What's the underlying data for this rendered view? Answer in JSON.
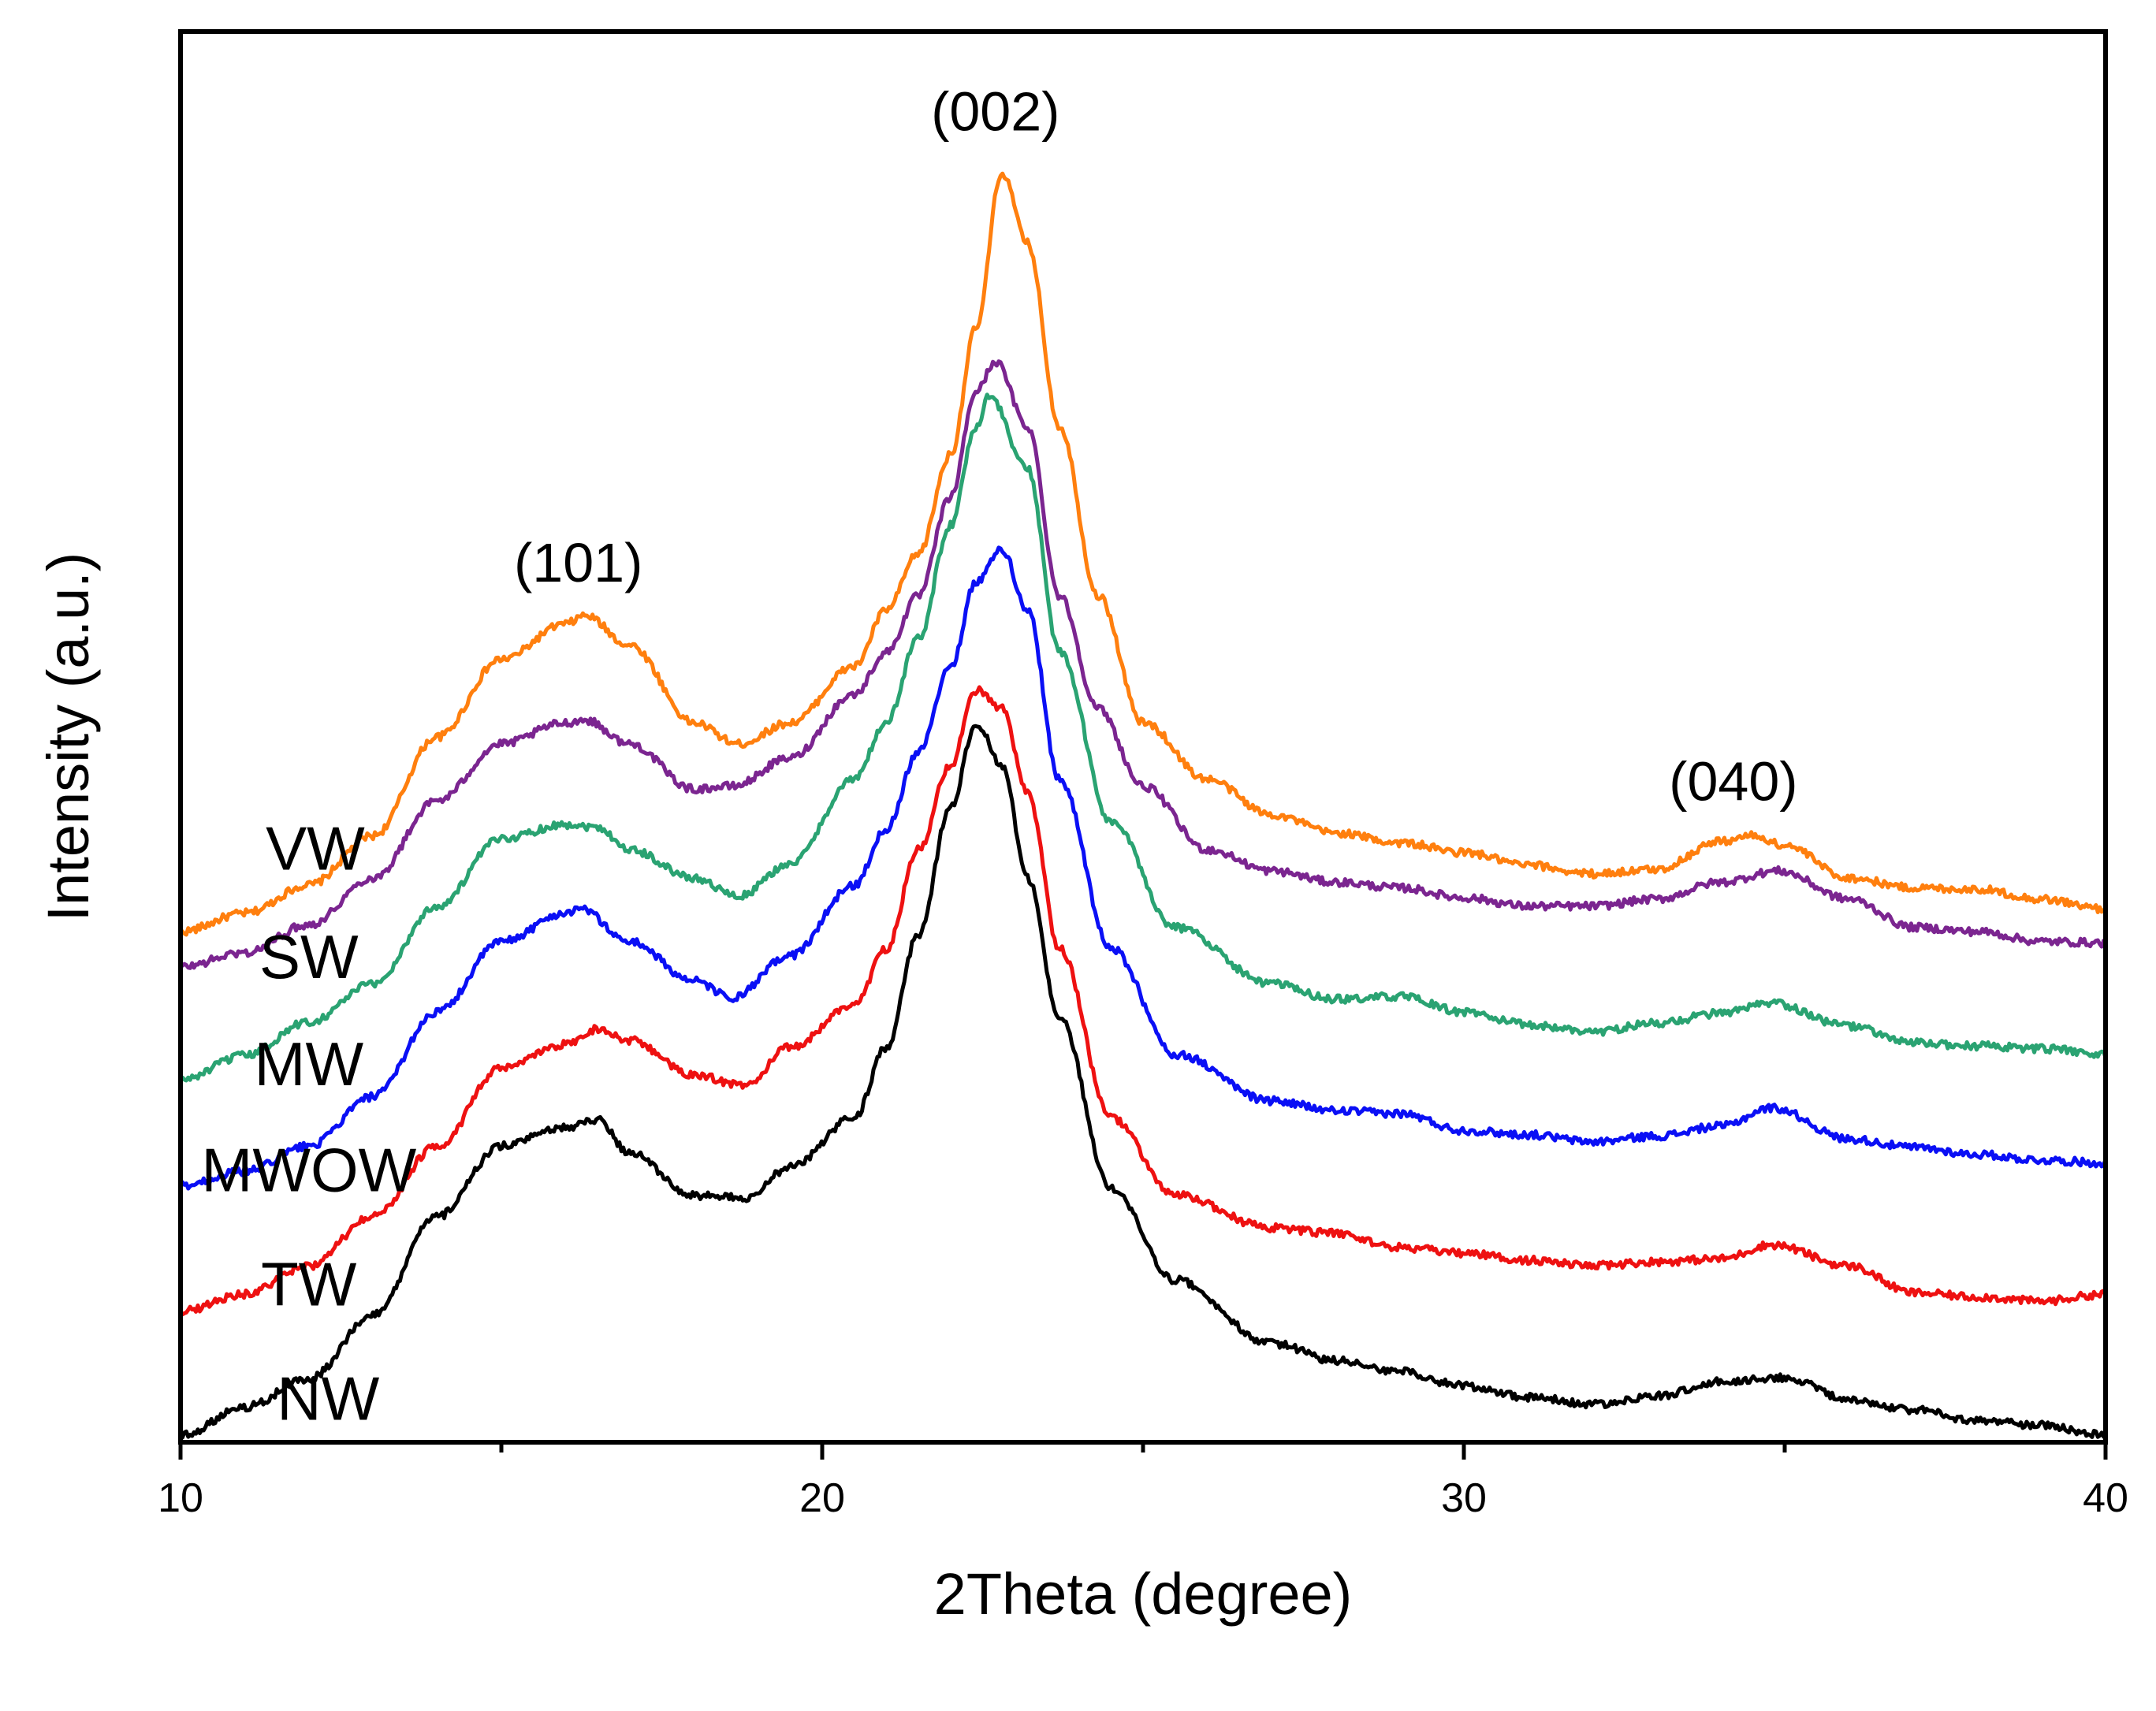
{
  "chart_data": {
    "type": "line",
    "title": "",
    "xlabel": "2Theta (degree)",
    "ylabel": "Intensity (a.u.)",
    "xlim": [
      10,
      40
    ],
    "ylim": [
      0,
      100
    ],
    "xticks": [
      10,
      20,
      30,
      40
    ],
    "x_minor_ticks": [
      15,
      25,
      35
    ],
    "x_tick_labels": [
      "10",
      "20",
      "30",
      "40"
    ],
    "grid": false,
    "y_tick_labels_shown": false,
    "peak_annotations": [
      {
        "label": "(101)",
        "x": 16.2,
        "y": 61
      },
      {
        "label": "(002)",
        "x": 22.7,
        "y": 93
      },
      {
        "label": "(040)",
        "x": 34.2,
        "y": 45.5
      }
    ],
    "series": [
      {
        "name": "VW",
        "color": "#ff7f0e",
        "label_x": 12.1,
        "label_y": 40.6,
        "points": [
          [
            10,
            36.2
          ],
          [
            11,
            37.5
          ],
          [
            12,
            39.5
          ],
          [
            13,
            43
          ],
          [
            14,
            50
          ],
          [
            15,
            55.5
          ],
          [
            16,
            58
          ],
          [
            16.3,
            58.6
          ],
          [
            17,
            56.5
          ],
          [
            18,
            51
          ],
          [
            18.7,
            49.5
          ],
          [
            19.5,
            51
          ],
          [
            20.5,
            55
          ],
          [
            21,
            59
          ],
          [
            21.5,
            63
          ],
          [
            22,
            70
          ],
          [
            22.4,
            79
          ],
          [
            22.8,
            90
          ],
          [
            23.2,
            85
          ],
          [
            23.7,
            72
          ],
          [
            24.3,
            60
          ],
          [
            25,
            51
          ],
          [
            26,
            47
          ],
          [
            27,
            44.5
          ],
          [
            28,
            43.2
          ],
          [
            29,
            42.5
          ],
          [
            30,
            41.8
          ],
          [
            31,
            40.9
          ],
          [
            32,
            40.3
          ],
          [
            33,
            40.6
          ],
          [
            34,
            42.6
          ],
          [
            34.5,
            43
          ],
          [
            35,
            42.3
          ],
          [
            36,
            40
          ],
          [
            37,
            39.3
          ],
          [
            38,
            39.2
          ],
          [
            39,
            38.5
          ],
          [
            40,
            37.8
          ]
        ]
      },
      {
        "name": "SW",
        "color": "#7b2590",
        "label_x": 12.0,
        "label_y": 32.9,
        "points": [
          [
            10,
            33.7
          ],
          [
            11,
            34.7
          ],
          [
            12,
            36.7
          ],
          [
            13,
            40
          ],
          [
            14,
            45.5
          ],
          [
            15,
            49.5
          ],
          [
            16,
            51
          ],
          [
            16.3,
            51.2
          ],
          [
            17,
            49.5
          ],
          [
            18,
            46.3
          ],
          [
            18.6,
            46.5
          ],
          [
            19.5,
            48.5
          ],
          [
            20.5,
            53
          ],
          [
            21,
            56
          ],
          [
            21.5,
            60
          ],
          [
            22,
            67
          ],
          [
            22.4,
            74.5
          ],
          [
            22.7,
            76.6
          ],
          [
            23.2,
            72
          ],
          [
            23.7,
            60
          ],
          [
            24.3,
            52
          ],
          [
            25,
            46.5
          ],
          [
            26,
            42
          ],
          [
            27,
            40.5
          ],
          [
            28,
            39.7
          ],
          [
            29,
            39.3
          ],
          [
            30,
            38.6
          ],
          [
            31,
            38
          ],
          [
            32,
            38
          ],
          [
            33,
            38.5
          ],
          [
            34,
            39.7
          ],
          [
            34.9,
            40.5
          ],
          [
            36,
            38.5
          ],
          [
            37,
            36.5
          ],
          [
            38,
            36.2
          ],
          [
            39,
            35.5
          ],
          [
            40,
            35.4
          ]
        ]
      },
      {
        "name": "MW",
        "color": "#2aa372",
        "label_x": 12.0,
        "label_y": 25.3,
        "points": [
          [
            10,
            25.7
          ],
          [
            11,
            27.4
          ],
          [
            12,
            29.8
          ],
          [
            13,
            32.5
          ],
          [
            14,
            38
          ],
          [
            15,
            42.8
          ],
          [
            16,
            43.8
          ],
          [
            16.5,
            43.6
          ],
          [
            17,
            42
          ],
          [
            18,
            40
          ],
          [
            18.7,
            38.7
          ],
          [
            19.5,
            41
          ],
          [
            20.5,
            47
          ],
          [
            21,
            51
          ],
          [
            21.5,
            57
          ],
          [
            22,
            65
          ],
          [
            22.4,
            72
          ],
          [
            22.6,
            74.2
          ],
          [
            23.2,
            69
          ],
          [
            23.7,
            56
          ],
          [
            24.5,
            44
          ],
          [
            25.5,
            36.5
          ],
          [
            27,
            32.5
          ],
          [
            28,
            31.4
          ],
          [
            29,
            31.6
          ],
          [
            30,
            30.5
          ],
          [
            31,
            29.6
          ],
          [
            32,
            29.1
          ],
          [
            33,
            29.7
          ],
          [
            34,
            30.4
          ],
          [
            34.8,
            31.1
          ],
          [
            36,
            29.5
          ],
          [
            37,
            28.3
          ],
          [
            38,
            28.1
          ],
          [
            39,
            27.9
          ],
          [
            40,
            27.5
          ]
        ]
      },
      {
        "name": "MWOW",
        "color": "#0a0ff5",
        "label_x": 12.0,
        "label_y": 17.8,
        "points": [
          [
            10,
            18.2
          ],
          [
            11,
            19.2
          ],
          [
            12,
            21
          ],
          [
            13,
            24.5
          ],
          [
            14,
            30.5
          ],
          [
            15,
            35.5
          ],
          [
            16,
            37.5
          ],
          [
            16.2,
            37.9
          ],
          [
            17,
            35.5
          ],
          [
            18,
            32.7
          ],
          [
            18.6,
            31.5
          ],
          [
            19.5,
            34.5
          ],
          [
            20.5,
            39.5
          ],
          [
            21,
            43.5
          ],
          [
            21.5,
            49
          ],
          [
            22,
            55
          ],
          [
            22.4,
            61
          ],
          [
            22.8,
            63.3
          ],
          [
            23.2,
            59
          ],
          [
            23.7,
            47
          ],
          [
            24.5,
            35
          ],
          [
            25.5,
            27.5
          ],
          [
            27,
            24.2
          ],
          [
            28,
            23.5
          ],
          [
            29,
            23.3
          ],
          [
            30,
            22.1
          ],
          [
            31,
            21.8
          ],
          [
            32,
            21.3
          ],
          [
            33,
            21.7
          ],
          [
            34,
            22.4
          ],
          [
            34.8,
            23.7
          ],
          [
            36,
            21.5
          ],
          [
            37,
            20.9
          ],
          [
            38,
            20.4
          ],
          [
            39,
            20
          ],
          [
            40,
            19.8
          ]
        ]
      },
      {
        "name": "TW",
        "color": "#ee1111",
        "label_x": 12.0,
        "label_y": 9.7,
        "points": [
          [
            10,
            9.3
          ],
          [
            11,
            10.5
          ],
          [
            12,
            12.5
          ],
          [
            13,
            16
          ],
          [
            14,
            21
          ],
          [
            15,
            26.5
          ],
          [
            16,
            28.2
          ],
          [
            16.5,
            29.3
          ],
          [
            17,
            28.5
          ],
          [
            18,
            26
          ],
          [
            18.8,
            25.3
          ],
          [
            19.5,
            28
          ],
          [
            20.5,
            31
          ],
          [
            21,
            35
          ],
          [
            21.5,
            42
          ],
          [
            22,
            48
          ],
          [
            22.4,
            53.3
          ],
          [
            22.8,
            52
          ],
          [
            23.2,
            46
          ],
          [
            23.7,
            35
          ],
          [
            24.5,
            23
          ],
          [
            25.5,
            17.5
          ],
          [
            27,
            15.2
          ],
          [
            28,
            14.8
          ],
          [
            29,
            13.8
          ],
          [
            30,
            13.4
          ],
          [
            31,
            12.9
          ],
          [
            32,
            12.5
          ],
          [
            33,
            12.8
          ],
          [
            34,
            13
          ],
          [
            34.8,
            14
          ],
          [
            36,
            12.5
          ],
          [
            37,
            10.6
          ],
          [
            38,
            10.3
          ],
          [
            39,
            10
          ],
          [
            40,
            10.5
          ]
        ]
      },
      {
        "name": "NW",
        "color": "#000000",
        "label_x": 12.3,
        "label_y": 1.6,
        "points": [
          [
            10,
            0.5
          ],
          [
            11,
            2.5
          ],
          [
            12,
            4.5
          ],
          [
            13,
            9
          ],
          [
            14,
            16
          ],
          [
            15,
            21
          ],
          [
            16,
            22.3
          ],
          [
            16.5,
            22.9
          ],
          [
            17,
            20.5
          ],
          [
            18,
            17.5
          ],
          [
            18.8,
            17.3
          ],
          [
            19.5,
            19.5
          ],
          [
            20.5,
            23
          ],
          [
            21,
            28
          ],
          [
            21.5,
            36
          ],
          [
            22,
            45
          ],
          [
            22.4,
            51
          ],
          [
            22.8,
            48
          ],
          [
            23.2,
            40
          ],
          [
            23.7,
            30
          ],
          [
            24.5,
            18
          ],
          [
            25.5,
            11.5
          ],
          [
            27,
            7
          ],
          [
            28,
            5.8
          ],
          [
            29,
            5
          ],
          [
            30,
            4
          ],
          [
            31,
            3.2
          ],
          [
            32,
            2.7
          ],
          [
            33,
            3.3
          ],
          [
            34,
            4.3
          ],
          [
            35,
            4.6
          ],
          [
            36,
            3
          ],
          [
            37,
            2.3
          ],
          [
            38,
            1.5
          ],
          [
            39,
            1.2
          ],
          [
            40,
            0.5
          ]
        ]
      }
    ]
  }
}
